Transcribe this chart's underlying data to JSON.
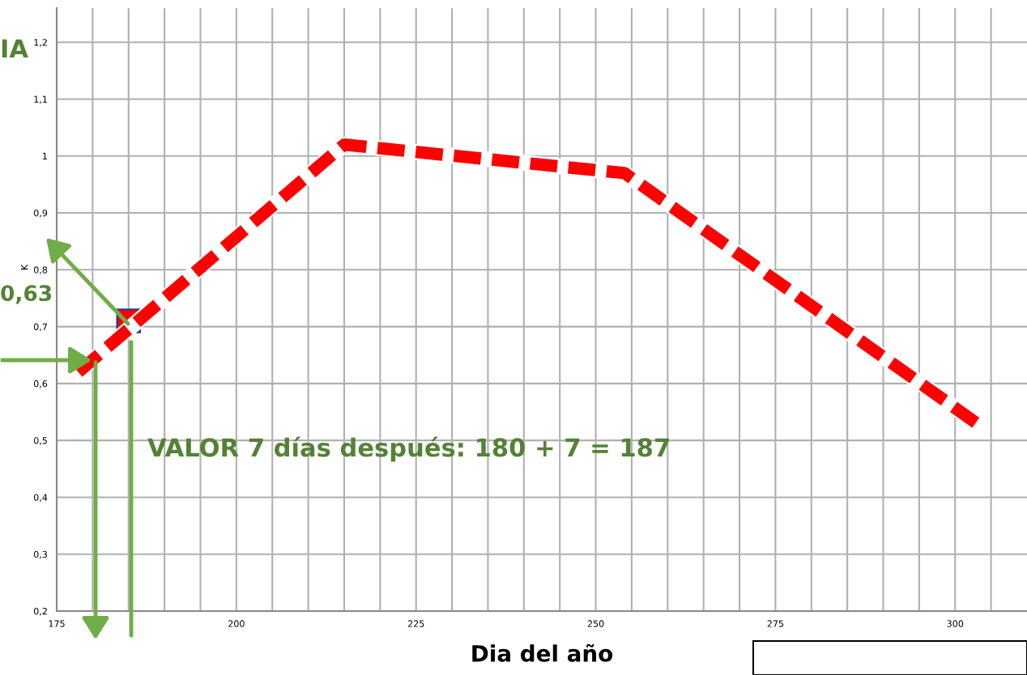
{
  "chart_data": {
    "type": "line",
    "xlabel": "Dia del año",
    "ylabel": "K",
    "xlim": [
      175,
      310
    ],
    "ylim": [
      0.2,
      1.26
    ],
    "xticks": [
      175,
      {
        "value": 180,
        "label": null
      },
      {
        "value": 185,
        "label": null
      },
      {
        "value": 190,
        "label": null
      },
      {
        "value": 195,
        "label": null
      },
      200,
      {
        "value": 205,
        "label": null
      },
      {
        "value": 210,
        "label": null
      },
      {
        "value": 215,
        "label": null
      },
      {
        "value": 220,
        "label": null
      },
      225,
      {
        "value": 230,
        "label": null
      },
      {
        "value": 235,
        "label": null
      },
      {
        "value": 240,
        "label": null
      },
      {
        "value": 245,
        "label": null
      },
      250,
      {
        "value": 255,
        "label": null
      },
      {
        "value": 260,
        "label": null
      },
      {
        "value": 265,
        "label": null
      },
      {
        "value": 270,
        "label": null
      },
      275,
      {
        "value": 280,
        "label": null
      },
      {
        "value": 285,
        "label": null
      },
      {
        "value": 290,
        "label": null
      },
      {
        "value": 295,
        "label": null
      },
      300,
      {
        "value": 305,
        "label": null
      }
    ],
    "yticks": [
      {
        "value": 0.2,
        "label": "0,2"
      },
      {
        "value": 0.3,
        "label": "0,3"
      },
      {
        "value": 0.4,
        "label": "0,4"
      },
      {
        "value": 0.5,
        "label": "0,5"
      },
      {
        "value": 0.6,
        "label": "0,6"
      },
      {
        "value": 0.7,
        "label": "0,7"
      },
      {
        "value": 0.8,
        "label": "0,8"
      },
      {
        "value": 0.9,
        "label": "0,9"
      },
      {
        "value": 1.0,
        "label": "1"
      },
      {
        "value": 1.1,
        "label": "1,1"
      },
      {
        "value": 1.2,
        "label": "1,2"
      }
    ],
    "grid": true,
    "line_style": "dashed",
    "series": [
      {
        "color": "#ff0000",
        "x": [
          178,
          215,
          254,
          303
        ],
        "values": [
          0.62,
          1.02,
          0.97,
          0.53
        ]
      },
      {
        "type": "scatter",
        "color": "#ff0000",
        "marker": "square",
        "x": [
          185
        ],
        "values": [
          0.71
        ]
      }
    ],
    "annotations": [
      "IA",
      "0,63",
      "VALOR 7 días después: 180 + 7 = 187"
    ]
  }
}
